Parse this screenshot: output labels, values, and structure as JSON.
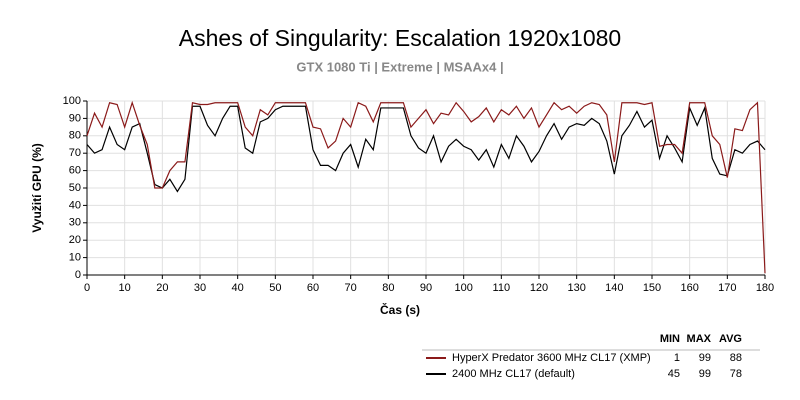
{
  "chart_data": {
    "type": "line",
    "title": "Ashes of Singularity: Escalation 1920x1080",
    "subtitle": "GTX 1080 Ti | Extreme | MSAAx4 |",
    "x_label": "Čas (s)",
    "y_label": "Využití GPU (%)",
    "xlim": [
      0,
      180
    ],
    "ylim": [
      0,
      100
    ],
    "xticks": [
      0,
      10,
      20,
      30,
      40,
      50,
      60,
      70,
      80,
      90,
      100,
      110,
      120,
      130,
      140,
      150,
      160,
      170,
      180
    ],
    "yticks": [
      0,
      10,
      20,
      30,
      40,
      50,
      60,
      70,
      80,
      90,
      100
    ],
    "grid": true,
    "stat_headers": [
      "MIN",
      "MAX",
      "AVG"
    ],
    "x": [
      0,
      2,
      4,
      6,
      8,
      10,
      12,
      14,
      16,
      18,
      20,
      22,
      24,
      26,
      28,
      30,
      32,
      34,
      36,
      38,
      40,
      42,
      44,
      46,
      48,
      50,
      52,
      54,
      56,
      58,
      60,
      62,
      64,
      66,
      68,
      70,
      72,
      74,
      76,
      78,
      80,
      82,
      84,
      86,
      88,
      90,
      92,
      94,
      96,
      98,
      100,
      102,
      104,
      106,
      108,
      110,
      112,
      114,
      116,
      118,
      120,
      122,
      124,
      126,
      128,
      130,
      132,
      134,
      136,
      138,
      140,
      142,
      144,
      146,
      148,
      150,
      152,
      154,
      156,
      158,
      160,
      162,
      164,
      166,
      168,
      170,
      172,
      174,
      176,
      178,
      180
    ],
    "series": [
      {
        "name": "HyperX Predator 3600 MHz CL17 (XMP)",
        "color": "#8b1a1a",
        "stats": [
          1,
          99,
          88
        ],
        "values": [
          80,
          93,
          85,
          99,
          98,
          85,
          99,
          86,
          75,
          50,
          50,
          60,
          65,
          65,
          99,
          98,
          98,
          99,
          99,
          99,
          99,
          85,
          80,
          95,
          92,
          99,
          99,
          99,
          99,
          99,
          85,
          84,
          73,
          77,
          90,
          85,
          99,
          97,
          88,
          99,
          99,
          99,
          99,
          85,
          90,
          95,
          87,
          93,
          92,
          99,
          94,
          88,
          91,
          96,
          88,
          95,
          92,
          97,
          90,
          96,
          85,
          92,
          99,
          95,
          97,
          93,
          97,
          99,
          98,
          92,
          65,
          99,
          99,
          99,
          98,
          99,
          74,
          75,
          75,
          70,
          99,
          99,
          99,
          80,
          75,
          56,
          84,
          83,
          95,
          99,
          1
        ]
      },
      {
        "name": "2400 MHz CL17 (default)",
        "color": "#000000",
        "stats": [
          45,
          99,
          78
        ],
        "values": [
          75,
          70,
          72,
          85,
          75,
          72,
          85,
          87,
          70,
          52,
          50,
          55,
          48,
          55,
          97,
          97,
          86,
          80,
          90,
          97,
          97,
          73,
          70,
          88,
          90,
          95,
          97,
          97,
          97,
          97,
          72,
          63,
          63,
          60,
          70,
          75,
          62,
          78,
          72,
          96,
          96,
          96,
          96,
          80,
          73,
          70,
          80,
          65,
          74,
          78,
          74,
          72,
          66,
          72,
          62,
          75,
          67,
          80,
          74,
          65,
          71,
          80,
          87,
          78,
          85,
          87,
          86,
          90,
          87,
          77,
          58,
          80,
          86,
          94,
          85,
          89,
          67,
          80,
          73,
          65,
          96,
          86,
          96,
          67,
          58,
          57,
          72,
          70,
          75,
          77,
          72
        ]
      }
    ]
  }
}
